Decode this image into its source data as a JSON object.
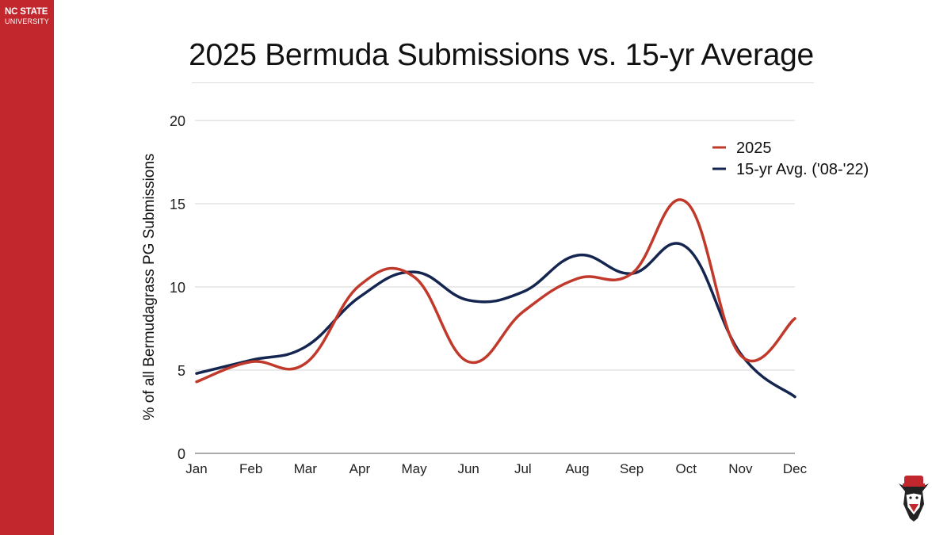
{
  "brand": {
    "line1": "NC STATE",
    "line2": "UNIVERSITY",
    "color": "#c1272d"
  },
  "slide": {
    "title": "2025 Bermuda Submissions vs. 15-yr Average"
  },
  "mascot": {
    "icon": "wolf-mascot-icon"
  },
  "chart_data": {
    "type": "line",
    "title": "2025 Bermuda Submissions vs. 15-yr Average",
    "xlabel": "",
    "ylabel": "% of all Bermudagrass PG Submissions",
    "categories": [
      "Jan",
      "Feb",
      "Mar",
      "Apr",
      "May",
      "Jun",
      "Jul",
      "Aug",
      "Sep",
      "Oct",
      "Nov",
      "Dec"
    ],
    "ylim": [
      0,
      20
    ],
    "yticks": [
      0,
      5,
      10,
      15,
      20
    ],
    "grid": true,
    "legend_position": "top-right",
    "smooth": true,
    "series": [
      {
        "name": "2025",
        "color": "#c0392b",
        "values": [
          4.3,
          5.5,
          5.4,
          10.1,
          10.6,
          5.5,
          8.5,
          10.5,
          10.8,
          15.1,
          5.9,
          8.1
        ]
      },
      {
        "name": "15-yr Avg. ('08-'22)",
        "color": "#14254f",
        "values": [
          4.8,
          5.6,
          6.4,
          9.4,
          10.9,
          9.2,
          9.7,
          11.9,
          10.8,
          12.4,
          6.0,
          3.4
        ]
      }
    ]
  }
}
